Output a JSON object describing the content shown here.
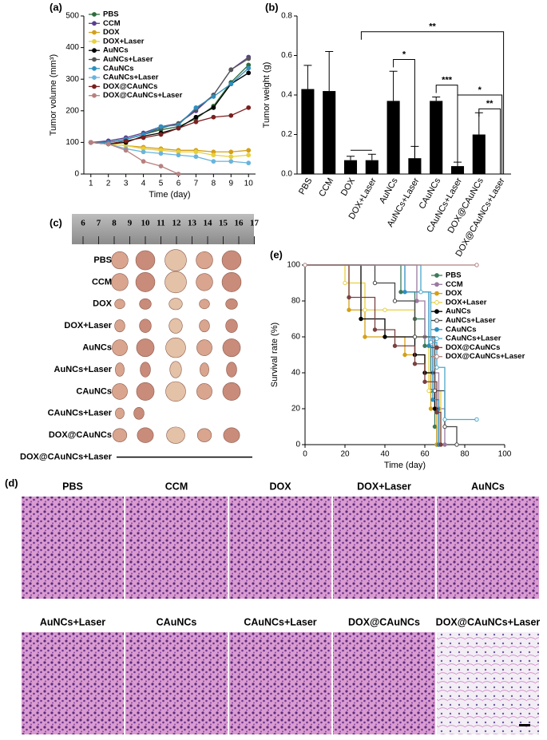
{
  "chart_data": [
    {
      "type": "line",
      "panel_label": "(a)",
      "x_label": "Time (day)",
      "y_label": "Tumor volume (mm³)",
      "x": [
        1,
        2,
        3,
        4,
        5,
        6,
        7,
        8,
        9,
        10
      ],
      "xlim": [
        0.6,
        10.4
      ],
      "xticks": [
        1,
        2,
        3,
        4,
        5,
        6,
        7,
        8,
        9,
        10
      ],
      "ylim": [
        0,
        500
      ],
      "yticks": [
        0,
        100,
        200,
        300,
        400,
        500
      ],
      "legend": "upper left",
      "series": [
        {
          "name": "PBS",
          "color": "#2e6b3a",
          "values": [
            100,
            100,
            110,
            125,
            140,
            150,
            175,
            215,
            290,
            345
          ]
        },
        {
          "name": "CCM",
          "color": "#5b3f8f",
          "values": [
            100,
            105,
            115,
            130,
            150,
            160,
            200,
            250,
            330,
            370
          ]
        },
        {
          "name": "DOX",
          "color": "#d4a017",
          "values": [
            100,
            95,
            90,
            85,
            80,
            75,
            75,
            70,
            70,
            75
          ]
        },
        {
          "name": "DOX+Laser",
          "color": "#e6d040",
          "values": [
            100,
            95,
            90,
            80,
            75,
            70,
            70,
            60,
            55,
            60
          ]
        },
        {
          "name": "AuNCs",
          "color": "#000000",
          "values": [
            100,
            95,
            100,
            120,
            130,
            145,
            180,
            210,
            285,
            320
          ]
        },
        {
          "name": "AuNCs+Laser",
          "color": "#555555",
          "values": [
            100,
            100,
            110,
            125,
            145,
            160,
            205,
            250,
            330,
            365
          ]
        },
        {
          "name": "CAuNCs",
          "color": "#2c8fc0",
          "values": [
            100,
            100,
            110,
            125,
            150,
            155,
            210,
            245,
            285,
            335
          ]
        },
        {
          "name": "CAuNCs+Laser",
          "color": "#6ab4dc",
          "values": [
            100,
            95,
            80,
            70,
            65,
            60,
            55,
            40,
            40,
            35
          ]
        },
        {
          "name": "DOX@CAuNCs",
          "color": "#7a1f1f",
          "values": [
            100,
            95,
            105,
            115,
            125,
            145,
            165,
            180,
            185,
            210
          ]
        },
        {
          "name": "DOX@CAuNCs+Laser",
          "color": "#b88080",
          "values": [
            100,
            95,
            75,
            40,
            25,
            0,
            null,
            null,
            null,
            null
          ]
        }
      ]
    },
    {
      "type": "bar",
      "panel_label": "(b)",
      "y_label": "Tumor weight (g)",
      "categories": [
        "PBS",
        "CCM",
        "DOX",
        "DOX+Laser",
        "AuNCs",
        "AuNCs+Laser",
        "CAuNCs",
        "CAuNCs+Laser",
        "DOX@CAuNCs",
        "DOX@CAuNCs+Laser"
      ],
      "values": [
        0.43,
        0.42,
        0.07,
        0.07,
        0.37,
        0.08,
        0.37,
        0.04,
        0.2,
        0
      ],
      "errors": [
        0.12,
        0.2,
        0.02,
        0.03,
        0.15,
        0.06,
        0.02,
        0.02,
        0.11,
        0
      ],
      "color": "#000000",
      "ylim": [
        0,
        0.8
      ],
      "yticks": [
        {
          "value": 0,
          "label": "0.0"
        },
        0.2,
        0.4,
        0.6,
        0.8
      ],
      "annotations": [
        "**",
        "*",
        "***",
        "*",
        "**"
      ]
    },
    {
      "type": "line",
      "step": true,
      "panel_label": "(e)",
      "x_label": "Time (day)",
      "y_label": "Survival rate (%)",
      "xlim": [
        0,
        100
      ],
      "xticks": [
        0,
        20,
        40,
        60,
        80,
        100
      ],
      "ylim": [
        0,
        100
      ],
      "yticks": [
        0,
        20,
        40,
        60,
        80,
        100
      ],
      "legend": "right",
      "series": [
        {
          "name": "PBS",
          "color": "#3a7a5a",
          "open": false,
          "x": [
            0,
            48,
            55,
            60,
            63,
            65,
            66
          ],
          "values": [
            100,
            85,
            70,
            55,
            30,
            10,
            0
          ]
        },
        {
          "name": "CCM",
          "color": "#9a7aa0",
          "open": false,
          "x": [
            0,
            56,
            60,
            64,
            67,
            70
          ],
          "values": [
            100,
            80,
            60,
            40,
            20,
            0
          ]
        },
        {
          "name": "DOX",
          "color": "#d4a017",
          "open": false,
          "x": [
            0,
            22,
            30,
            50,
            60,
            63,
            66
          ],
          "values": [
            100,
            75,
            60,
            50,
            40,
            20,
            0
          ]
        },
        {
          "name": "DOX+Laser",
          "color": "#e6d040",
          "open": true,
          "x": [
            0,
            20,
            30,
            40,
            55,
            62,
            68
          ],
          "values": [
            100,
            90,
            75,
            75,
            60,
            30,
            0
          ]
        },
        {
          "name": "AuNCs",
          "color": "#000000",
          "open": false,
          "x": [
            0,
            28,
            40,
            55,
            60,
            65,
            67
          ],
          "values": [
            100,
            70,
            60,
            50,
            40,
            20,
            0
          ]
        },
        {
          "name": "AuNCs+Laser",
          "color": "#444444",
          "open": true,
          "x": [
            0,
            35,
            45,
            55,
            65,
            70,
            76
          ],
          "values": [
            100,
            90,
            80,
            60,
            30,
            10,
            0
          ]
        },
        {
          "name": "CAuNCs",
          "color": "#2c8fc0",
          "open": false,
          "x": [
            0,
            50,
            62,
            64,
            67
          ],
          "values": [
            100,
            85,
            55,
            25,
            0
          ]
        },
        {
          "name": "CAuNCs+Laser",
          "color": "#4aa8cc",
          "open": true,
          "x": [
            0,
            58,
            63,
            66,
            70,
            86
          ],
          "values": [
            100,
            85,
            57,
            43,
            14,
            14
          ]
        },
        {
          "name": "DOX@CAuNCs",
          "color": "#7a4040",
          "open": false,
          "x": [
            0,
            22,
            35,
            45,
            55,
            60,
            66,
            68
          ],
          "values": [
            100,
            82,
            64,
            55,
            45,
            35,
            18,
            0
          ]
        },
        {
          "name": "DOX@CAuNCs+Laser",
          "color": "#b08080",
          "open": true,
          "x": [
            0,
            86
          ],
          "values": [
            100,
            100
          ]
        }
      ]
    }
  ],
  "panel_c": {
    "panel_label": "(c)",
    "ruler": [
      "6",
      "7",
      "8",
      "9",
      "10",
      "11",
      "12",
      "13",
      "14",
      "15",
      "16",
      "17"
    ],
    "rows": [
      "PBS",
      "CCM",
      "DOX",
      "DOX+Laser",
      "AuNCs",
      "AuNCs+Laser",
      "CAuNCs",
      "CAuNCs+Laser",
      "DOX@CAuNCs",
      "DOX@CAuNCs+Laser"
    ]
  },
  "panel_d": {
    "panel_label": "(d)",
    "images": [
      "PBS",
      "CCM",
      "DOX",
      "DOX+Laser",
      "AuNCs",
      "AuNCs+Laser",
      "CAuNCs",
      "CAuNCs+Laser",
      "DOX@CAuNCs",
      "DOX@CAuNCs+Laser"
    ]
  }
}
